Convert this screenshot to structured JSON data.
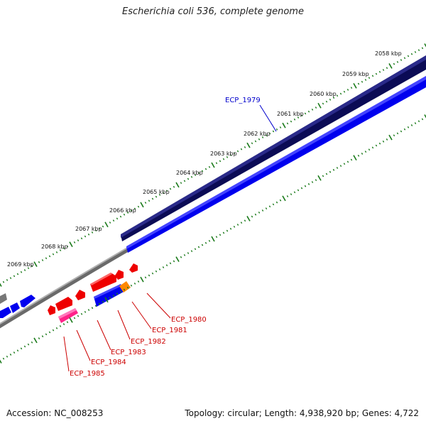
{
  "title": "Escherichia coli 536, complete genome",
  "footer": {
    "accession": "Accession: NC_008253",
    "summary": "Topology: circular; Length: 4,938,920 bp; Genes: 4,722"
  },
  "scale": {
    "unit_labels": [
      "2058 kbp",
      "2059 kbp",
      "2060 kbp",
      "2061 kbp",
      "2062 kbp",
      "2063 kbp",
      "2064 kbp",
      "2065 kbp",
      "2066 kbp",
      "2067 kbp",
      "2068 kbp",
      "2069 kbp"
    ]
  },
  "colors": {
    "tick_green": "#1a7a1a",
    "forward_gene": "#0000ff",
    "forward_dark": "#101060",
    "reverse_gene": "#ff0000",
    "pink_gene": "#ff3399",
    "orange_gene": "#ff8800",
    "backbone": "#888888",
    "label_forward": "#0000cc",
    "label_reverse": "#cc0000"
  },
  "labels": {
    "forward": [
      "ECP_1979"
    ],
    "reverse": [
      "ECP_1980",
      "ECP_1981",
      "ECP_1982",
      "ECP_1983",
      "ECP_1984",
      "ECP_1985"
    ]
  }
}
